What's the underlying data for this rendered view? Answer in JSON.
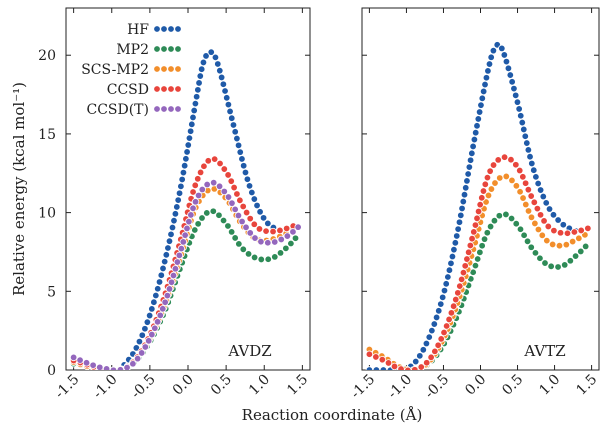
{
  "chart_data": [
    {
      "type": "line",
      "panel_label": "AVDZ",
      "xlabel": "Reaction coordinate (Å)",
      "ylabel": "Relative energy (kcal mol⁻¹)",
      "xlim": [
        -1.6,
        1.6
      ],
      "ylim": [
        0,
        23
      ],
      "xticks": [
        "-1.5",
        "-1.0",
        "-0.5",
        "0.0",
        "0.5",
        "1.0",
        "1.5"
      ],
      "yticks": [
        "0",
        "5",
        "10",
        "15",
        "20"
      ],
      "legend_position": "top-left",
      "series": [
        {
          "name": "HF",
          "color": "#1f5aa8",
          "x": [
            -0.9,
            -0.7,
            -0.5,
            -0.3,
            -0.1,
            0.1,
            0.2,
            0.3,
            0.4,
            0.6,
            0.8,
            1.0,
            1.2,
            1.4
          ],
          "y": [
            0.0,
            1.2,
            3.5,
            7.0,
            11.5,
            17.0,
            19.5,
            20.2,
            19.3,
            15.5,
            11.8,
            9.6,
            8.9,
            9.0
          ]
        },
        {
          "name": "MP2",
          "color": "#2e8b57",
          "x": [
            -1.5,
            -1.3,
            -1.1,
            -0.9,
            -0.7,
            -0.5,
            -0.3,
            -0.1,
            0.1,
            0.3,
            0.5,
            0.7,
            0.9,
            1.1,
            1.3,
            1.45
          ],
          "y": [
            0.4,
            0.2,
            0.0,
            0.0,
            0.5,
            1.8,
            3.8,
            6.5,
            9.0,
            10.1,
            9.3,
            7.8,
            7.1,
            7.1,
            7.8,
            8.6
          ]
        },
        {
          "name": "SCS-MP2",
          "color": "#f28e2b",
          "x": [
            -1.5,
            -1.3,
            -1.1,
            -0.9,
            -0.7,
            -0.5,
            -0.3,
            -0.1,
            0.1,
            0.3,
            0.5,
            0.7,
            0.9,
            1.1,
            1.3,
            1.45
          ],
          "y": [
            0.5,
            0.2,
            0.0,
            0.0,
            0.6,
            2.0,
            4.2,
            7.2,
            10.3,
            11.5,
            10.9,
            9.3,
            8.3,
            8.3,
            8.7,
            9.1
          ]
        },
        {
          "name": "CCSD",
          "color": "#e8453c",
          "x": [
            -1.5,
            -1.3,
            -1.1,
            -0.9,
            -0.7,
            -0.5,
            -0.3,
            -0.1,
            0.1,
            0.3,
            0.5,
            0.7,
            0.9,
            1.1,
            1.3,
            1.45
          ],
          "y": [
            0.6,
            0.3,
            0.0,
            0.0,
            0.6,
            2.2,
            4.8,
            8.2,
            11.8,
            13.4,
            12.6,
            10.6,
            9.1,
            8.8,
            9.0,
            9.3
          ]
        },
        {
          "name": "CCSD(T)",
          "color": "#9467bd",
          "x": [
            -1.5,
            -1.3,
            -1.1,
            -0.9,
            -0.7,
            -0.5,
            -0.3,
            -0.1,
            0.1,
            0.3,
            0.5,
            0.7,
            0.9,
            1.1,
            1.3,
            1.45
          ],
          "y": [
            0.8,
            0.4,
            0.1,
            0.0,
            0.5,
            2.0,
            4.3,
            7.5,
            10.7,
            11.9,
            11.2,
            9.5,
            8.3,
            8.1,
            8.5,
            9.1
          ]
        }
      ]
    },
    {
      "type": "line",
      "panel_label": "AVTZ",
      "xlim": [
        -1.6,
        1.6
      ],
      "ylim": [
        0,
        23
      ],
      "xticks": [
        "-1.5",
        "-1.0",
        "-0.5",
        "0.0",
        "0.5",
        "1.0",
        "1.5"
      ],
      "series": [
        {
          "name": "HF",
          "color": "#1f5aa8",
          "x": [
            -1.5,
            -1.3,
            -1.1,
            -0.9,
            -0.7,
            -0.5,
            -0.3,
            -0.1,
            0.1,
            0.2,
            0.3,
            0.5,
            0.7,
            0.9,
            1.1,
            1.3
          ],
          "y": [
            0.0,
            0.0,
            0.0,
            0.4,
            2.0,
            4.8,
            9.0,
            14.2,
            19.0,
            20.5,
            20.3,
            17.0,
            13.0,
            10.5,
            9.3,
            8.8
          ]
        },
        {
          "name": "MP2",
          "color": "#2e8b57",
          "x": [
            -1.5,
            -1.3,
            -1.1,
            -0.9,
            -0.7,
            -0.5,
            -0.3,
            -0.1,
            0.1,
            0.3,
            0.5,
            0.7,
            0.9,
            1.1,
            1.3,
            1.45
          ],
          "y": [
            1.2,
            0.8,
            0.2,
            0.0,
            0.4,
            1.6,
            3.6,
            6.2,
            8.8,
            9.9,
            9.2,
            7.7,
            6.7,
            6.6,
            7.3,
            8.0
          ]
        },
        {
          "name": "SCS-MP2",
          "color": "#f28e2b",
          "x": [
            -1.5,
            -1.3,
            -1.1,
            -0.9,
            -0.7,
            -0.5,
            -0.3,
            -0.1,
            0.1,
            0.3,
            0.5,
            0.7,
            0.9,
            1.1,
            1.3,
            1.45
          ],
          "y": [
            1.3,
            0.8,
            0.2,
            0.0,
            0.5,
            2.0,
            4.4,
            7.6,
            11.0,
            12.3,
            11.6,
            9.6,
            8.2,
            7.9,
            8.3,
            8.7
          ]
        },
        {
          "name": "CCSD",
          "color": "#e8453c",
          "x": [
            -1.5,
            -1.3,
            -1.1,
            -0.9,
            -0.7,
            -0.5,
            -0.3,
            -0.1,
            0.1,
            0.3,
            0.5,
            0.7,
            0.9,
            1.1,
            1.3,
            1.45
          ],
          "y": [
            1.0,
            0.6,
            0.1,
            0.0,
            0.6,
            2.3,
            5.0,
            8.6,
            12.3,
            13.5,
            12.9,
            10.9,
            9.2,
            8.7,
            8.8,
            9.0
          ]
        }
      ]
    }
  ]
}
